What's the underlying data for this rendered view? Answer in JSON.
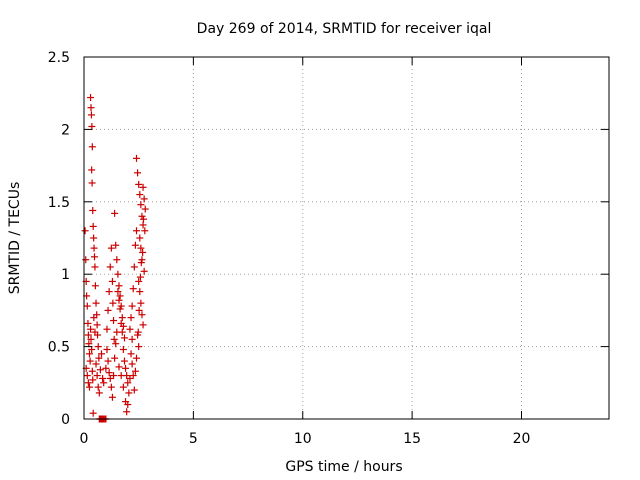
{
  "chart_data": {
    "type": "scatter",
    "title": "Day 269 of 2014, SRMTID for receiver iqal",
    "xlabel": "GPS time / hours",
    "ylabel": "SRMTID / TECUs",
    "xlim": [
      0,
      24
    ],
    "ylim": [
      0,
      2.5
    ],
    "xticks": [
      0,
      5,
      10,
      15,
      20
    ],
    "yticks": [
      0,
      0.5,
      1,
      1.5,
      2,
      2.5
    ],
    "xtick_labels": [
      "0",
      "5",
      "10",
      "15",
      "20"
    ],
    "ytick_labels": [
      "0",
      "0.5",
      "1",
      "1.5",
      "2",
      "2.5"
    ],
    "grid": true,
    "marker": "+",
    "series": [
      {
        "name": "SRMTID",
        "color": "#cc0000",
        "points": [
          [
            0.05,
            1.3
          ],
          [
            0.08,
            1.1
          ],
          [
            0.1,
            0.95
          ],
          [
            0.12,
            0.85
          ],
          [
            0.15,
            0.78
          ],
          [
            0.18,
            0.66
          ],
          [
            0.2,
            0.58
          ],
          [
            0.22,
            0.52
          ],
          [
            0.25,
            0.45
          ],
          [
            0.28,
            0.4
          ],
          [
            0.1,
            0.35
          ],
          [
            0.15,
            0.3
          ],
          [
            0.2,
            0.25
          ],
          [
            0.25,
            0.22
          ],
          [
            0.3,
            0.62
          ],
          [
            0.32,
            0.55
          ],
          [
            0.35,
            0.48
          ],
          [
            0.38,
            0.33
          ],
          [
            0.4,
            0.27
          ],
          [
            0.42,
            0.04
          ],
          [
            0.3,
            2.22
          ],
          [
            0.32,
            2.15
          ],
          [
            0.34,
            2.1
          ],
          [
            0.36,
            2.02
          ],
          [
            0.38,
            1.88
          ],
          [
            0.35,
            1.72
          ],
          [
            0.37,
            1.63
          ],
          [
            0.4,
            1.44
          ],
          [
            0.42,
            1.33
          ],
          [
            0.44,
            1.25
          ],
          [
            0.46,
            1.18
          ],
          [
            0.48,
            1.12
          ],
          [
            0.5,
            1.05
          ],
          [
            0.52,
            0.92
          ],
          [
            0.55,
            0.8
          ],
          [
            0.58,
            0.72
          ],
          [
            0.6,
            0.65
          ],
          [
            0.62,
            0.58
          ],
          [
            0.65,
            0.5
          ],
          [
            0.68,
            0.42
          ],
          [
            0.45,
            0.7
          ],
          [
            0.5,
            0.6
          ],
          [
            0.55,
            0.38
          ],
          [
            0.6,
            0.3
          ],
          [
            0.65,
            0.22
          ],
          [
            0.7,
            0.18
          ],
          [
            0.75,
            0.34
          ],
          [
            0.8,
            0.45
          ],
          [
            0.85,
            0.28
          ],
          [
            0.9,
            0.25
          ],
          [
            0.7,
            0.0
          ],
          [
            0.75,
            0.0
          ],
          [
            0.8,
            0.0
          ],
          [
            0.85,
            0.0
          ],
          [
            0.9,
            0.0
          ],
          [
            0.95,
            0.0
          ],
          [
            1.0,
            0.0
          ],
          [
            0.72,
            0.0
          ],
          [
            0.88,
            0.0
          ],
          [
            0.98,
            0.0
          ],
          [
            1.0,
            0.35
          ],
          [
            1.05,
            0.62
          ],
          [
            1.1,
            0.75
          ],
          [
            1.15,
            0.88
          ],
          [
            1.2,
            1.05
          ],
          [
            1.25,
            1.18
          ],
          [
            1.3,
            0.95
          ],
          [
            1.32,
            0.8
          ],
          [
            1.35,
            0.68
          ],
          [
            1.38,
            0.55
          ],
          [
            1.05,
            0.48
          ],
          [
            1.1,
            0.4
          ],
          [
            1.15,
            0.32
          ],
          [
            1.2,
            0.28
          ],
          [
            1.25,
            0.22
          ],
          [
            1.3,
            0.15
          ],
          [
            1.35,
            0.3
          ],
          [
            1.4,
            0.42
          ],
          [
            1.45,
            0.52
          ],
          [
            1.5,
            0.6
          ],
          [
            1.4,
            1.42
          ],
          [
            1.45,
            1.2
          ],
          [
            1.5,
            1.1
          ],
          [
            1.55,
            1.0
          ],
          [
            1.6,
            0.92
          ],
          [
            1.65,
            0.85
          ],
          [
            1.7,
            0.78
          ],
          [
            1.75,
            0.7
          ],
          [
            1.8,
            0.64
          ],
          [
            1.85,
            0.56
          ],
          [
            1.55,
            0.88
          ],
          [
            1.6,
            0.82
          ],
          [
            1.65,
            0.76
          ],
          [
            1.7,
            0.66
          ],
          [
            1.75,
            0.6
          ],
          [
            1.8,
            0.48
          ],
          [
            1.85,
            0.4
          ],
          [
            1.9,
            0.35
          ],
          [
            1.95,
            0.3
          ],
          [
            2.0,
            0.25
          ],
          [
            1.6,
            0.36
          ],
          [
            1.7,
            0.3
          ],
          [
            1.8,
            0.22
          ],
          [
            1.9,
            0.12
          ],
          [
            1.95,
            0.05
          ],
          [
            2.0,
            0.1
          ],
          [
            2.05,
            0.18
          ],
          [
            2.1,
            0.28
          ],
          [
            2.15,
            0.45
          ],
          [
            2.2,
            0.55
          ],
          [
            2.1,
            0.62
          ],
          [
            2.15,
            0.7
          ],
          [
            2.2,
            0.78
          ],
          [
            2.25,
            0.9
          ],
          [
            2.3,
            1.05
          ],
          [
            2.35,
            1.2
          ],
          [
            2.4,
            1.3
          ],
          [
            2.2,
            0.38
          ],
          [
            2.25,
            0.3
          ],
          [
            2.3,
            0.2
          ],
          [
            2.4,
            1.8
          ],
          [
            2.45,
            1.7
          ],
          [
            2.5,
            1.62
          ],
          [
            2.55,
            1.55
          ],
          [
            2.6,
            1.48
          ],
          [
            2.65,
            1.4
          ],
          [
            2.7,
            1.34
          ],
          [
            2.55,
            1.25
          ],
          [
            2.6,
            1.18
          ],
          [
            2.65,
            1.1
          ],
          [
            2.5,
            0.95
          ],
          [
            2.55,
            0.88
          ],
          [
            2.6,
            0.8
          ],
          [
            2.65,
            0.72
          ],
          [
            2.7,
            0.65
          ],
          [
            2.75,
            1.02
          ],
          [
            2.45,
            0.58
          ],
          [
            2.5,
            0.5
          ],
          [
            2.4,
            0.42
          ],
          [
            2.35,
            0.33
          ],
          [
            2.7,
            1.6
          ],
          [
            2.75,
            1.52
          ],
          [
            2.8,
            1.45
          ],
          [
            2.72,
            1.38
          ],
          [
            2.78,
            1.3
          ],
          [
            2.68,
            1.15
          ],
          [
            2.62,
            1.08
          ],
          [
            2.58,
            0.98
          ],
          [
            2.52,
            0.75
          ],
          [
            2.48,
            0.6
          ]
        ]
      }
    ]
  }
}
